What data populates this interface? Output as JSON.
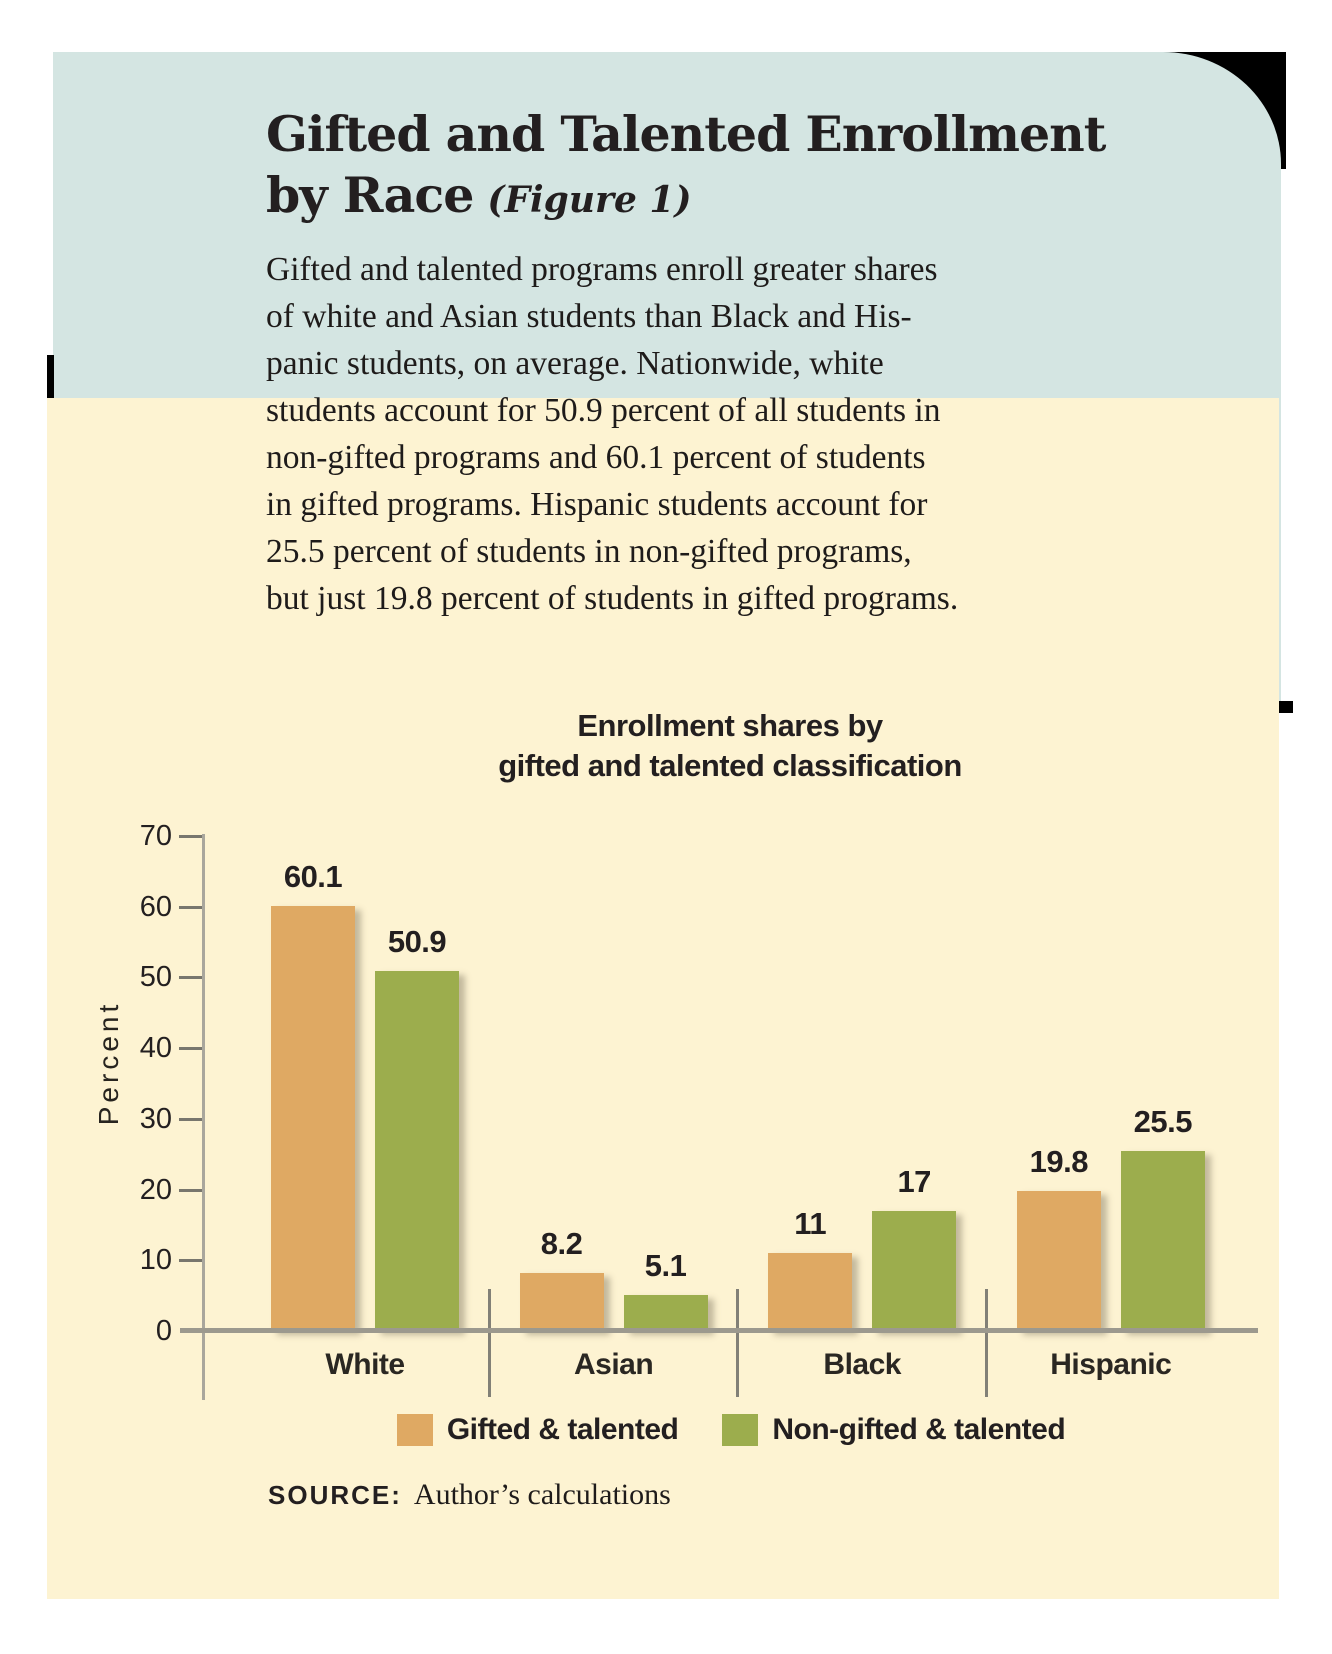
{
  "header": {
    "title_line1": "Gifted and Talented Enrollment",
    "title_line2": "by Race",
    "figure_note": "(Figure 1)",
    "description_lines": [
      "Gifted and talented programs enroll greater shares",
      "of white and Asian students than Black and His-",
      "panic students, on average. Nationwide, white",
      "students account for 50.9 percent of all students in",
      "non-gifted programs and 60.1 percent of students",
      "in gifted programs. Hispanic students account for",
      "25.5 percent of students in non-gifted programs,",
      "but just 19.8 percent of students in gifted programs."
    ]
  },
  "chart_data": {
    "type": "bar",
    "title_lines": [
      "Enrollment shares by",
      "gifted and talented classification"
    ],
    "ylabel": "Percent",
    "xlabel": "",
    "ylim": [
      0,
      70
    ],
    "yticks": [
      70,
      60,
      50,
      40,
      30,
      20,
      10,
      0
    ],
    "grid": false,
    "legend_position": "bottom",
    "categories": [
      "White",
      "Asian",
      "Black",
      "Hispanic"
    ],
    "series": [
      {
        "name": "Gifted & talented",
        "color": "#dfa963",
        "values": [
          60.1,
          8.2,
          11,
          19.8
        ]
      },
      {
        "name": "Non-gifted & talented",
        "color": "#9cad4d",
        "values": [
          50.9,
          5.1,
          17,
          25.5
        ]
      }
    ]
  },
  "source": {
    "label": "SOURCE:",
    "text": "Author’s calculations"
  },
  "colors": {
    "header_bg": "#d4e5e2",
    "chart_bg": "#fdf3d2",
    "ink": "#231f20",
    "tan": "#dfa963",
    "green": "#9cad4d",
    "axis": "#a9a69c",
    "baseline": "#9c998e"
  }
}
